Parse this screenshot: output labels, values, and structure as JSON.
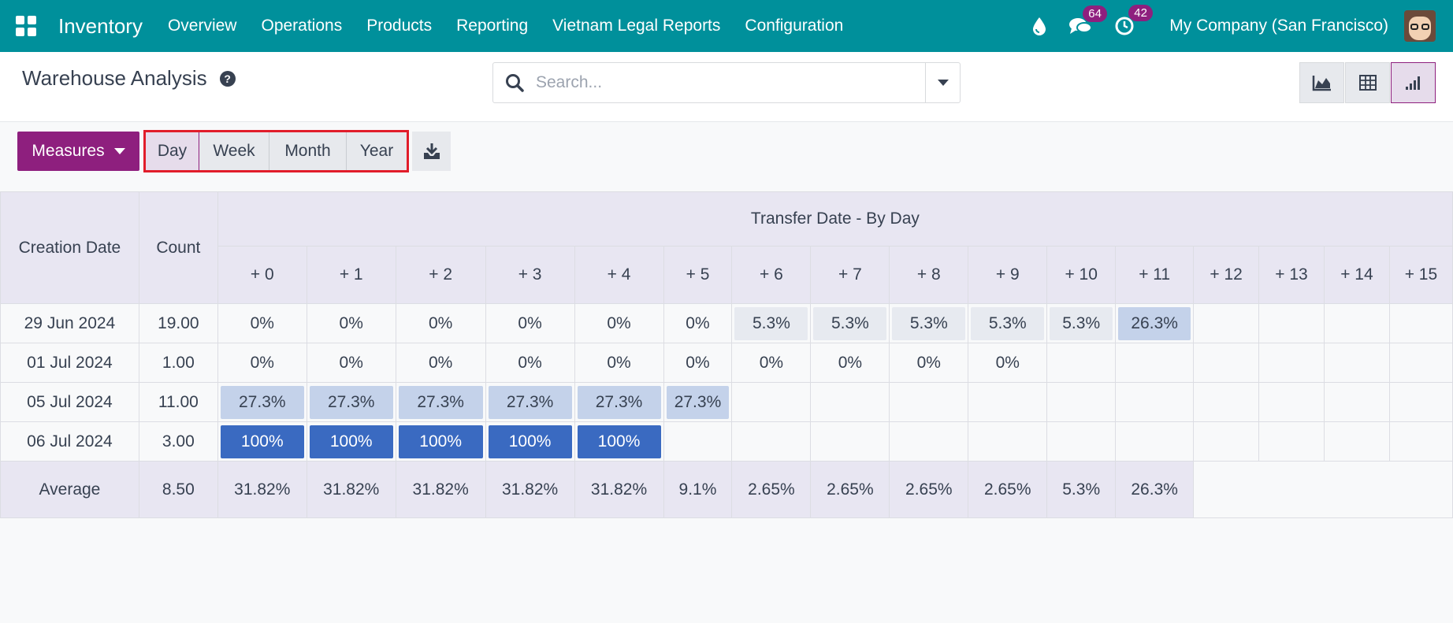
{
  "navbar": {
    "app_name": "Inventory",
    "menu": [
      "Overview",
      "Operations",
      "Products",
      "Reporting",
      "Vietnam Legal Reports",
      "Configuration"
    ],
    "messages_badge": "64",
    "activities_badge": "42",
    "company": "My Company (San Francisco)",
    "accent_color": "#00909b"
  },
  "control_panel": {
    "title": "Warehouse Analysis",
    "help_glyph": "?",
    "search_placeholder": "Search...",
    "views": [
      "graph-view",
      "pivot-view",
      "cohort-view"
    ],
    "active_view": "cohort-view"
  },
  "toolbar": {
    "measures_label": "Measures",
    "intervals": [
      "Day",
      "Week",
      "Month",
      "Year"
    ],
    "active_interval": "Day",
    "primary_color": "#8e1f7e"
  },
  "cohort": {
    "row_header": "Creation Date",
    "count_header": "Count",
    "group_header": "Transfer Date - By Day",
    "columns": [
      "+ 0",
      "+ 1",
      "+ 2",
      "+ 3",
      "+ 4",
      "+ 5",
      "+ 6",
      "+ 7",
      "+ 8",
      "+ 9",
      "+ 10",
      "+ 11",
      "+ 12",
      "+ 13",
      "+ 14",
      "+ 15"
    ],
    "rows": [
      {
        "date": "29 Jun 2024",
        "count": "19.00",
        "cells": [
          "0%",
          "0%",
          "0%",
          "0%",
          "0%",
          "0%",
          "5.3%",
          "5.3%",
          "5.3%",
          "5.3%",
          "5.3%",
          "26.3%",
          "",
          "",
          "",
          ""
        ],
        "levels": [
          0,
          0,
          0,
          0,
          0,
          0,
          1,
          1,
          1,
          1,
          1,
          2,
          0,
          0,
          0,
          0
        ]
      },
      {
        "date": "01 Jul 2024",
        "count": "1.00",
        "cells": [
          "0%",
          "0%",
          "0%",
          "0%",
          "0%",
          "0%",
          "0%",
          "0%",
          "0%",
          "0%",
          "",
          "",
          "",
          "",
          "",
          ""
        ],
        "levels": [
          0,
          0,
          0,
          0,
          0,
          0,
          0,
          0,
          0,
          0,
          0,
          0,
          0,
          0,
          0,
          0
        ]
      },
      {
        "date": "05 Jul 2024",
        "count": "11.00",
        "cells": [
          "27.3%",
          "27.3%",
          "27.3%",
          "27.3%",
          "27.3%",
          "27.3%",
          "",
          "",
          "",
          "",
          "",
          "",
          "",
          "",
          "",
          ""
        ],
        "levels": [
          2,
          2,
          2,
          2,
          2,
          2,
          0,
          0,
          0,
          0,
          0,
          0,
          0,
          0,
          0,
          0
        ]
      },
      {
        "date": "06 Jul 2024",
        "count": "3.00",
        "cells": [
          "100%",
          "100%",
          "100%",
          "100%",
          "100%",
          "",
          "",
          "",
          "",
          "",
          "",
          "",
          "",
          "",
          "",
          ""
        ],
        "levels": [
          3,
          3,
          3,
          3,
          3,
          0,
          0,
          0,
          0,
          0,
          0,
          0,
          0,
          0,
          0,
          0
        ]
      }
    ],
    "footer": {
      "label": "Average",
      "count": "8.50",
      "cells": [
        "31.82%",
        "31.82%",
        "31.82%",
        "31.82%",
        "31.82%",
        "9.1%",
        "2.65%",
        "2.65%",
        "2.65%",
        "2.65%",
        "5.3%",
        "26.3%"
      ]
    }
  }
}
